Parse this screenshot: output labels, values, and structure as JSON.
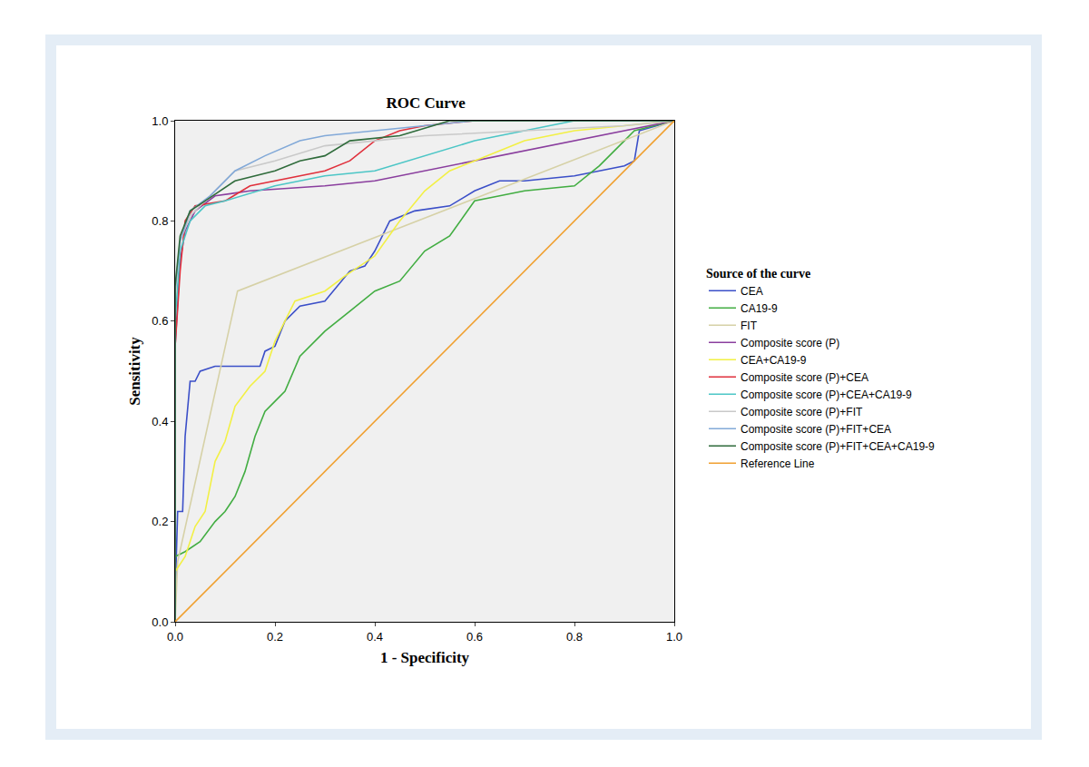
{
  "chart_data": {
    "type": "line",
    "title": "ROC Curve",
    "x_label": "1 - Specificity",
    "y_label": "Sensitivity",
    "legend_title": "Source of the curve",
    "legend": "right",
    "grid": false,
    "xlim": [
      0,
      1
    ],
    "ylim": [
      0,
      1
    ],
    "xticks": [
      {
        "value": 0,
        "label": "0.0"
      },
      {
        "value": 0.2,
        "label": "0.2"
      },
      {
        "value": 0.4,
        "label": "0.4"
      },
      {
        "value": 0.6,
        "label": "0.6"
      },
      {
        "value": 0.8,
        "label": "0.8"
      },
      {
        "value": 1,
        "label": "1.0"
      }
    ],
    "yticks": [
      {
        "value": 0,
        "label": "0.0"
      },
      {
        "value": 0.2,
        "label": "0.2"
      },
      {
        "value": 0.4,
        "label": "0.4"
      },
      {
        "value": 0.6,
        "label": "0.6"
      },
      {
        "value": 0.8,
        "label": "0.8"
      },
      {
        "value": 1,
        "label": "1.0"
      }
    ],
    "series": [
      {
        "name": "CEA",
        "color": "#3b4fc8",
        "x": [
          0,
          0,
          0.005,
          0.015,
          0.02,
          0.03,
          0.04,
          0.05,
          0.08,
          0.17,
          0.18,
          0.2,
          0.22,
          0.25,
          0.3,
          0.35,
          0.38,
          0.4,
          0.43,
          0.48,
          0.55,
          0.6,
          0.65,
          0.7,
          0.8,
          0.9,
          0.92,
          0.93,
          1
        ],
        "values": [
          0,
          0.05,
          0.22,
          0.22,
          0.37,
          0.48,
          0.48,
          0.5,
          0.51,
          0.51,
          0.54,
          0.55,
          0.6,
          0.63,
          0.64,
          0.7,
          0.71,
          0.74,
          0.8,
          0.82,
          0.83,
          0.86,
          0.88,
          0.88,
          0.89,
          0.91,
          0.92,
          0.98,
          1
        ]
      },
      {
        "name": "CA19-9",
        "color": "#42ad42",
        "x": [
          0,
          0,
          0.02,
          0.05,
          0.08,
          0.1,
          0.12,
          0.14,
          0.16,
          0.18,
          0.2,
          0.22,
          0.25,
          0.3,
          0.35,
          0.4,
          0.45,
          0.5,
          0.55,
          0.6,
          0.65,
          0.7,
          0.8,
          0.85,
          0.9,
          0.92,
          1
        ],
        "values": [
          0,
          0.13,
          0.14,
          0.16,
          0.2,
          0.22,
          0.25,
          0.3,
          0.37,
          0.42,
          0.44,
          0.46,
          0.53,
          0.58,
          0.62,
          0.66,
          0.68,
          0.74,
          0.77,
          0.84,
          0.85,
          0.86,
          0.87,
          0.91,
          0.96,
          0.98,
          1
        ]
      },
      {
        "name": "FIT",
        "color": "#d6d1a6",
        "x": [
          0,
          0.005,
          0.125,
          1
        ],
        "values": [
          0,
          0.12,
          0.66,
          1
        ]
      },
      {
        "name": "Composite score (P)",
        "color": "#8a3e9e",
        "x": [
          0,
          0,
          0.01,
          0.02,
          0.04,
          0.08,
          0.15,
          0.3,
          0.4,
          0.6,
          0.8,
          1
        ],
        "values": [
          0,
          0.55,
          0.72,
          0.78,
          0.82,
          0.85,
          0.86,
          0.87,
          0.88,
          0.92,
          0.96,
          1
        ]
      },
      {
        "name": "CEA+CA19-9",
        "color": "#f2f044",
        "x": [
          0,
          0,
          0.02,
          0.04,
          0.06,
          0.08,
          0.1,
          0.12,
          0.15,
          0.18,
          0.2,
          0.24,
          0.3,
          0.34,
          0.4,
          0.45,
          0.5,
          0.55,
          0.6,
          0.65,
          0.7,
          0.8,
          0.9,
          1
        ],
        "values": [
          0,
          0.1,
          0.13,
          0.19,
          0.22,
          0.32,
          0.36,
          0.43,
          0.47,
          0.5,
          0.56,
          0.64,
          0.66,
          0.69,
          0.73,
          0.8,
          0.86,
          0.9,
          0.92,
          0.94,
          0.96,
          0.98,
          0.99,
          1
        ]
      },
      {
        "name": "Composite score (P)+CEA",
        "color": "#e0303c",
        "x": [
          0,
          0,
          0.01,
          0.02,
          0.04,
          0.1,
          0.15,
          0.2,
          0.3,
          0.35,
          0.4,
          0.45,
          0.5,
          0.6,
          1
        ],
        "values": [
          0,
          0.55,
          0.7,
          0.8,
          0.83,
          0.84,
          0.87,
          0.88,
          0.9,
          0.92,
          0.96,
          0.98,
          0.99,
          1,
          1
        ]
      },
      {
        "name": "Composite score (P)+CEA+CA19-9",
        "color": "#4cc6c6",
        "x": [
          0,
          0,
          0.01,
          0.03,
          0.06,
          0.1,
          0.2,
          0.3,
          0.4,
          0.5,
          0.6,
          0.7,
          0.8,
          1
        ],
        "values": [
          0,
          0.6,
          0.74,
          0.8,
          0.83,
          0.84,
          0.87,
          0.89,
          0.9,
          0.93,
          0.96,
          0.98,
          1,
          1
        ]
      },
      {
        "name": "Composite score (P)+FIT",
        "color": "#c9c9c9",
        "x": [
          0,
          0,
          0.01,
          0.03,
          0.07,
          0.12,
          0.2,
          0.3,
          0.4,
          0.5,
          0.7,
          0.9,
          1
        ],
        "values": [
          0,
          0.65,
          0.76,
          0.81,
          0.85,
          0.9,
          0.92,
          0.95,
          0.96,
          0.97,
          0.98,
          0.99,
          1
        ]
      },
      {
        "name": "Composite score (P)+FIT+CEA",
        "color": "#82a9d8",
        "x": [
          0,
          0,
          0.01,
          0.03,
          0.07,
          0.12,
          0.18,
          0.25,
          0.3,
          0.4,
          0.5,
          0.6,
          1
        ],
        "values": [
          0,
          0.66,
          0.76,
          0.82,
          0.85,
          0.9,
          0.93,
          0.96,
          0.97,
          0.98,
          0.99,
          1,
          1
        ]
      },
      {
        "name": "Composite score (P)+FIT+CEA+CA19-9",
        "color": "#2f6b3b",
        "x": [
          0,
          0,
          0.01,
          0.03,
          0.06,
          0.12,
          0.2,
          0.25,
          0.3,
          0.35,
          0.45,
          0.55,
          1
        ],
        "values": [
          0,
          0.67,
          0.77,
          0.82,
          0.84,
          0.88,
          0.9,
          0.92,
          0.93,
          0.96,
          0.97,
          1,
          1
        ]
      },
      {
        "name": "Reference Line",
        "color": "#f0a030",
        "x": [
          0,
          1
        ],
        "values": [
          0,
          1
        ]
      }
    ]
  }
}
